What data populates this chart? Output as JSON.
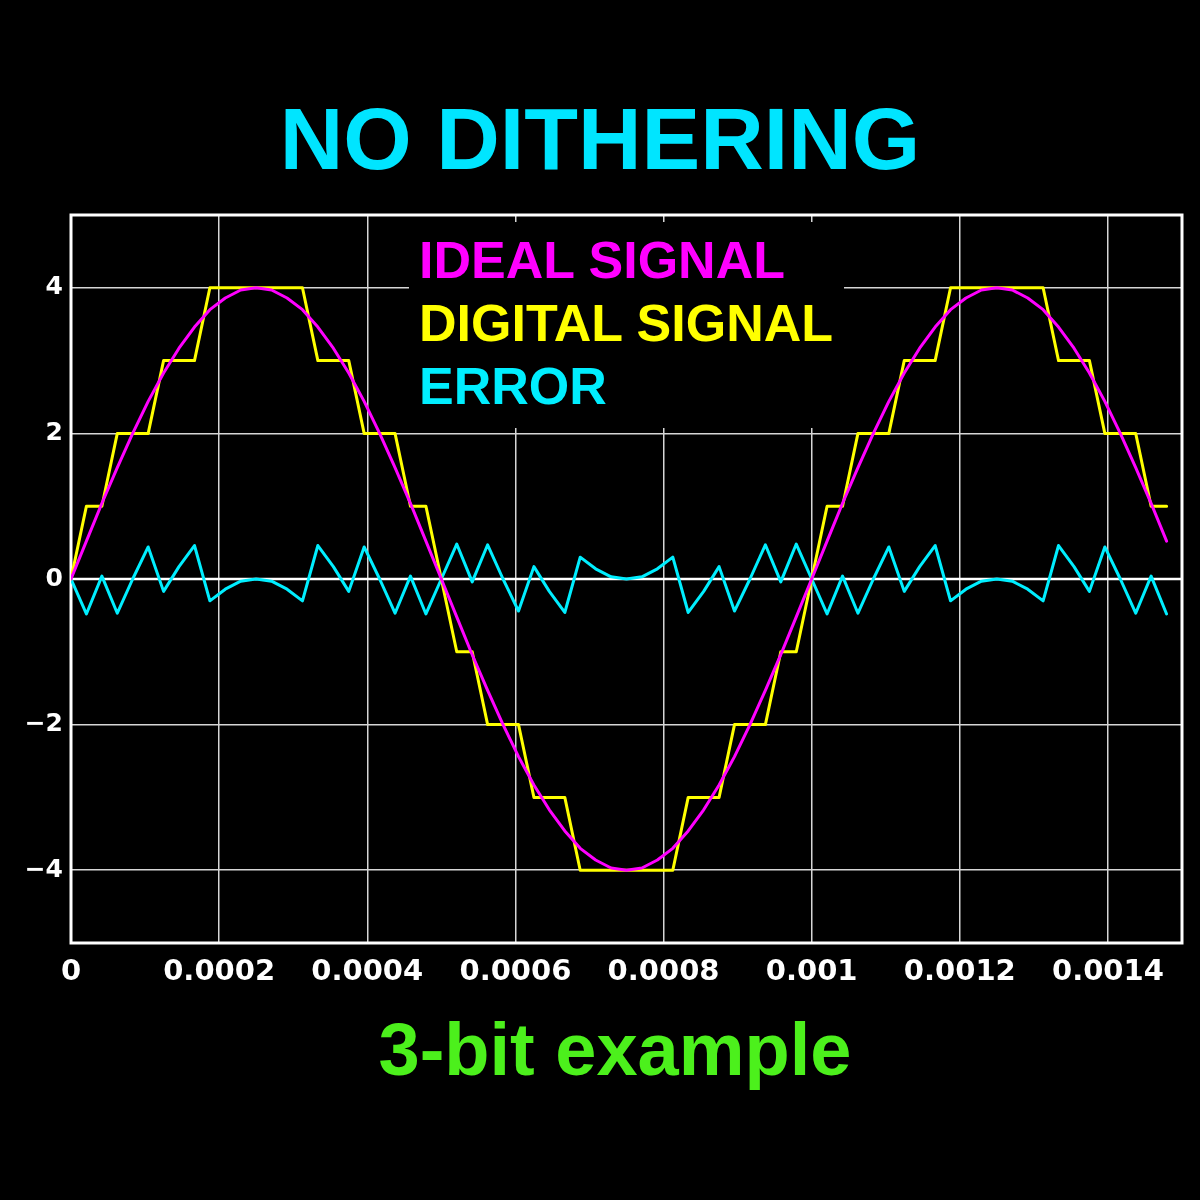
{
  "chart_data": {
    "type": "line",
    "title": "NO DITHERING",
    "annotations": [
      "3-bit example"
    ],
    "x": [
      0,
      2.08e-05,
      4.17e-05,
      6.25e-05,
      8.33e-05,
      0.0001042,
      0.000125,
      0.0001458,
      0.0001667,
      0.0001875,
      0.0002083,
      0.0002292,
      0.00025,
      0.0002708,
      0.0002917,
      0.0003125,
      0.0003333,
      0.0003542,
      0.000375,
      0.0003958,
      0.0004167,
      0.0004375,
      0.0004583,
      0.0004792,
      0.0005,
      0.0005208,
      0.0005417,
      0.0005625,
      0.0005833,
      0.0006042,
      0.000625,
      0.0006458,
      0.0006667,
      0.0006875,
      0.0007083,
      0.0007292,
      0.00075,
      0.0007708,
      0.0007917,
      0.0008125,
      0.0008333,
      0.0008542,
      0.000875,
      0.0008958,
      0.0009167,
      0.0009375,
      0.0009583,
      0.0009792,
      0.001,
      0.0010208,
      0.0010417,
      0.0010625,
      0.0010833,
      0.0011042,
      0.001125,
      0.0011458,
      0.0011667,
      0.0011875,
      0.0012083,
      0.0012292,
      0.00125,
      0.0012708,
      0.0012917,
      0.0013125,
      0.0013333,
      0.0013542,
      0.001375,
      0.0013958,
      0.0014167,
      0.0014375,
      0.0014583,
      0.0014792
    ],
    "series": [
      {
        "name": "IDEAL SIGNAL",
        "color": "#ff00ff",
        "values": [
          0,
          0.52,
          1.04,
          1.53,
          2,
          2.44,
          2.83,
          3.17,
          3.46,
          3.7,
          3.86,
          3.97,
          4,
          3.97,
          3.86,
          3.7,
          3.46,
          3.17,
          2.83,
          2.44,
          2,
          1.53,
          1.04,
          0.52,
          0,
          -0.52,
          -1.04,
          -1.53,
          -2,
          -2.44,
          -2.83,
          -3.17,
          -3.46,
          -3.7,
          -3.86,
          -3.97,
          -4,
          -3.97,
          -3.86,
          -3.7,
          -3.46,
          -3.17,
          -2.83,
          -2.44,
          -2,
          -1.53,
          -1.04,
          -0.52,
          0,
          0.52,
          1.04,
          1.53,
          2,
          2.44,
          2.83,
          3.17,
          3.46,
          3.7,
          3.86,
          3.97,
          4,
          3.97,
          3.86,
          3.7,
          3.46,
          3.17,
          2.83,
          2.44,
          2,
          1.53,
          1.04,
          0.52
        ]
      },
      {
        "name": "DIGITAL SIGNAL",
        "color": "#ffff00",
        "values": [
          0,
          1,
          1,
          2,
          2,
          2,
          3,
          3,
          3,
          4,
          4,
          4,
          4,
          4,
          4,
          4,
          3,
          3,
          3,
          2,
          2,
          2,
          1,
          1,
          0,
          -1,
          -1,
          -2,
          -2,
          -2,
          -3,
          -3,
          -3,
          -4,
          -4,
          -4,
          -4,
          -4,
          -4,
          -4,
          -3,
          -3,
          -3,
          -2,
          -2,
          -2,
          -1,
          -1,
          0,
          1,
          1,
          2,
          2,
          2,
          3,
          3,
          3,
          4,
          4,
          4,
          4,
          4,
          4,
          4,
          3,
          3,
          3,
          2,
          2,
          2,
          1,
          1
        ]
      },
      {
        "name": "ERROR",
        "color": "#00eeff",
        "values": [
          0,
          -0.48,
          0.04,
          -0.47,
          0,
          0.44,
          -0.17,
          0.17,
          0.46,
          -0.3,
          -0.14,
          -0.03,
          0,
          -0.03,
          -0.14,
          -0.3,
          0.46,
          0.17,
          -0.17,
          0.44,
          0,
          -0.47,
          0.04,
          -0.48,
          0,
          0.48,
          -0.04,
          0.47,
          0,
          -0.44,
          0.17,
          -0.17,
          -0.46,
          0.3,
          0.14,
          0.03,
          0,
          0.03,
          0.14,
          0.3,
          -0.46,
          -0.17,
          0.17,
          -0.44,
          0,
          0.47,
          -0.04,
          0.48,
          0,
          -0.48,
          0.04,
          -0.47,
          0,
          0.44,
          -0.17,
          0.17,
          0.46,
          -0.3,
          -0.14,
          -0.03,
          0,
          -0.03,
          -0.14,
          -0.3,
          0.46,
          0.17,
          -0.17,
          0.44,
          0,
          -0.47,
          0.04,
          -0.48
        ]
      }
    ],
    "xlim": [
      0,
      0.0015
    ],
    "xticks": [
      0,
      0.0002,
      0.0004,
      0.0006,
      0.0008,
      0.001,
      0.0012,
      0.0014
    ],
    "ylim": [
      -5,
      5
    ],
    "yticks": [
      {
        "value": -4,
        "label": "−4"
      },
      {
        "value": -2,
        "label": "−2"
      },
      0,
      2,
      4
    ],
    "ref_lines": [
      {
        "axis": "y",
        "value": 0,
        "color": "#ffffff"
      }
    ],
    "grid": true,
    "legend": "top",
    "marker": "none"
  }
}
